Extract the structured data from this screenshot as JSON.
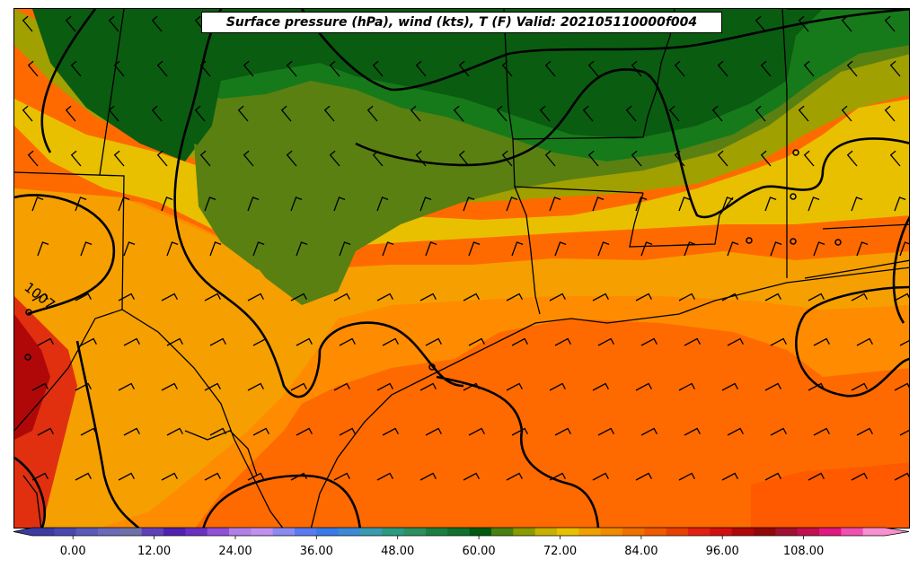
{
  "title": "Surface pressure (hPa), wind (kts), T (F) Valid: 202105110000f004",
  "isobar_label": "1007",
  "colorbar": {
    "tick_labels": [
      "0.00",
      "12.00",
      "24.00",
      "36.00",
      "48.00",
      "60.00",
      "72.00",
      "84.00",
      "96.00",
      "108.00"
    ],
    "tick_values": [
      0,
      12,
      24,
      36,
      48,
      60,
      72,
      84,
      96,
      108
    ],
    "range": [
      -6,
      120
    ],
    "colors": [
      "#3b3ba0",
      "#4848b0",
      "#5a5ab8",
      "#6a6ab8",
      "#7070a8",
      "#6040b8",
      "#5020b0",
      "#6a30c0",
      "#9050d8",
      "#b080e8",
      "#c090f0",
      "#8a8af0",
      "#5a7af0",
      "#3a7ae8",
      "#3a8ad8",
      "#3a9ab0",
      "#2a9a80",
      "#2a9060",
      "#1a8040",
      "#107030",
      "#005a10",
      "#4a8010",
      "#8a9a00",
      "#c8b000",
      "#e8c000",
      "#f0a000",
      "#f08a00",
      "#f07000",
      "#f05a00",
      "#e84000",
      "#e02010",
      "#d01010",
      "#b00808",
      "#900808",
      "#a01030",
      "#c01050",
      "#e01880",
      "#f050b0",
      "#f890d0"
    ]
  },
  "legend_colors": {
    "green_dark": "#0a5c10",
    "green": "#177a1a",
    "olive": "#5a8012",
    "olive_yellow": "#a0a000",
    "yellow": "#e8c000",
    "orange": "#f5a000",
    "orange_deep": "#ff8c00",
    "red_orange": "#ff6a00",
    "red": "#e03010"
  }
}
